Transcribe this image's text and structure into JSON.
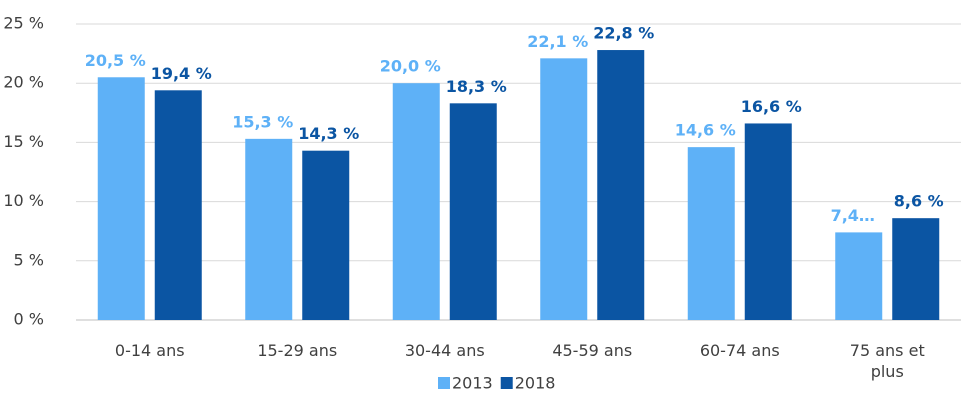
{
  "chart_data": {
    "type": "bar",
    "categories": [
      "0-14 ans",
      "15-29 ans",
      "30-44 ans",
      "45-59 ans",
      "60-74 ans",
      "75 ans et plus"
    ],
    "series": [
      {
        "name": "2013",
        "color": "#5eb1f7",
        "values": [
          20.5,
          15.3,
          20.0,
          22.1,
          14.6,
          7.4
        ],
        "value_labels": [
          "20,5 %",
          "15,3 %",
          "20,0 %",
          "22,1 %",
          "14,6 %",
          "7,4…"
        ]
      },
      {
        "name": "2018",
        "color": "#0b55a3",
        "values": [
          19.4,
          14.3,
          18.3,
          22.8,
          16.6,
          8.6
        ],
        "value_labels": [
          "19,4 %",
          "14,3 %",
          "18,3 %",
          "22,8 %",
          "16,6 %",
          "8,6 %"
        ]
      }
    ],
    "ylim": [
      0,
      25
    ],
    "yticks": [
      {
        "value": 0,
        "label": "0 %"
      },
      {
        "value": 5,
        "label": "5 %"
      },
      {
        "value": 10,
        "label": "10 %"
      },
      {
        "value": 15,
        "label": "15 %"
      },
      {
        "value": 20,
        "label": "20 %"
      },
      {
        "value": 25,
        "label": "25 %"
      }
    ],
    "grid": true,
    "legend": "bottom"
  }
}
